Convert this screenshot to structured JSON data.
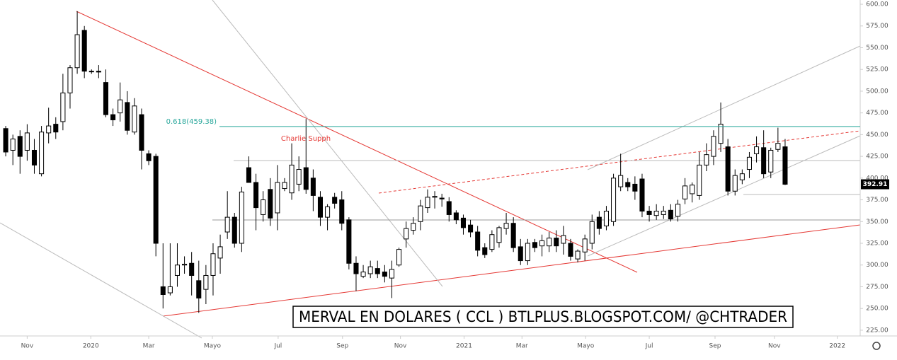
{
  "chart_data": {
    "type": "candlestick",
    "title": "MERVAL EN DOLARES ( CCL ) BTLPLUS.BLOGSPOT.COM/ @CHTRADER",
    "annotation": "Charlie Supph",
    "fib_level": {
      "value": 459.38,
      "label": "0.618(459.38)"
    },
    "last_price": 392.91,
    "open": [
      457,
      432,
      448,
      432,
      432,
      405,
      452,
      462,
      465,
      498,
      527,
      570,
      523,
      523,
      510,
      473,
      475,
      487,
      453,
      473,
      428,
      425,
      275,
      268,
      288,
      300,
      302,
      282,
      272,
      288,
      308,
      338,
      355,
      325,
      412,
      395,
      358,
      387,
      360,
      388,
      383,
      393,
      412,
      400,
      378,
      355,
      378,
      375,
      352,
      302,
      287,
      290,
      296,
      292,
      285,
      300,
      330,
      340,
      350,
      366,
      378,
      377,
      373,
      360,
      354,
      346,
      338,
      320,
      318,
      326,
      342,
      348,
      321,
      305,
      326,
      322,
      322,
      331,
      325,
      325,
      307,
      315,
      325,
      355,
      345,
      350,
      390,
      395,
      393,
      399,
      362,
      357,
      358,
      363,
      356,
      376,
      382,
      380,
      415,
      425,
      440,
      436,
      385,
      398,
      410,
      428,
      435,
      407,
      433,
      436
    ],
    "high": [
      460,
      450,
      455,
      462,
      445,
      460,
      481,
      470,
      520,
      530,
      592,
      575,
      525,
      530,
      525,
      480,
      510,
      500,
      492,
      480,
      432,
      428,
      325,
      325,
      325,
      310,
      315,
      305,
      300,
      325,
      335,
      385,
      360,
      390,
      425,
      405,
      385,
      400,
      415,
      400,
      440,
      425,
      468,
      410,
      385,
      370,
      383,
      385,
      355,
      310,
      300,
      305,
      305,
      300,
      305,
      320,
      350,
      355,
      375,
      387,
      385,
      382,
      378,
      363,
      358,
      352,
      345,
      325,
      340,
      345,
      360,
      355,
      330,
      330,
      330,
      335,
      338,
      340,
      345,
      330,
      318,
      335,
      358,
      362,
      368,
      405,
      428,
      400,
      402,
      405,
      368,
      370,
      368,
      370,
      375,
      400,
      395,
      430,
      440,
      455,
      487,
      445,
      410,
      410,
      430,
      448,
      455,
      435,
      458,
      445
    ],
    "low": [
      425,
      415,
      405,
      420,
      405,
      402,
      440,
      445,
      455,
      480,
      520,
      515,
      520,
      515,
      470,
      460,
      465,
      450,
      450,
      410,
      415,
      310,
      250,
      265,
      275,
      290,
      265,
      245,
      255,
      265,
      290,
      330,
      320,
      315,
      395,
      340,
      350,
      345,
      340,
      385,
      375,
      385,
      382,
      362,
      345,
      340,
      365,
      340,
      295,
      270,
      285,
      285,
      285,
      280,
      262,
      298,
      320,
      335,
      340,
      360,
      365,
      367,
      350,
      347,
      335,
      332,
      310,
      308,
      315,
      320,
      335,
      315,
      300,
      300,
      315,
      310,
      315,
      315,
      312,
      305,
      303,
      305,
      318,
      335,
      340,
      345,
      385,
      385,
      375,
      355,
      350,
      352,
      353,
      350,
      350,
      370,
      372,
      375,
      408,
      415,
      430,
      380,
      380,
      393,
      400,
      418,
      400,
      400,
      430,
      392
    ],
    "close": [
      430,
      445,
      425,
      452,
      415,
      453,
      460,
      453,
      498,
      527,
      565,
      523,
      523,
      522,
      473,
      467,
      490,
      455,
      483,
      432,
      420,
      325,
      266,
      275,
      300,
      301,
      288,
      262,
      288,
      313,
      321,
      355,
      325,
      384,
      395,
      366,
      375,
      354,
      395,
      395,
      415,
      410,
      387,
      380,
      355,
      367,
      371,
      348,
      302,
      290,
      292,
      298,
      290,
      287,
      295,
      318,
      342,
      348,
      368,
      378,
      379,
      376,
      358,
      352,
      343,
      338,
      317,
      312,
      335,
      343,
      348,
      320,
      305,
      325,
      320,
      328,
      331,
      322,
      334,
      310,
      316,
      330,
      350,
      342,
      362,
      400,
      403,
      390,
      385,
      362,
      358,
      362,
      362,
      353,
      370,
      391,
      392,
      415,
      427,
      448,
      462,
      385,
      403,
      405,
      424,
      436,
      405,
      432,
      440,
      392.91
    ],
    "up_color": "#ffffff",
    "down_color": "#000000",
    "xlim": [
      -0.8,
      119.5
    ],
    "xticks": [
      {
        "value": 3,
        "label": "Nov"
      },
      {
        "value": 11.9,
        "label": "2020"
      },
      {
        "value": 20,
        "label": "Mar"
      },
      {
        "value": 28.9,
        "label": "Mayo"
      },
      {
        "value": 38.1,
        "label": "Jul"
      },
      {
        "value": 47.1,
        "label": "Sep"
      },
      {
        "value": 55.2,
        "label": "Nov"
      },
      {
        "value": 64.1,
        "label": "2021"
      },
      {
        "value": 72.2,
        "label": "Mar"
      },
      {
        "value": 81.1,
        "label": "Mayo"
      },
      {
        "value": 90,
        "label": "Jul"
      },
      {
        "value": 99.2,
        "label": "Sep"
      },
      {
        "value": 107.5,
        "label": "Nov"
      },
      {
        "value": 116.3,
        "label": "2022"
      }
    ],
    "ylim": [
      218.4,
      604.9
    ],
    "yticks": [
      {
        "value": 225,
        "label": "225.00"
      },
      {
        "value": 250,
        "label": "250.00"
      },
      {
        "value": 275,
        "label": "275.00"
      },
      {
        "value": 300,
        "label": "300.00"
      },
      {
        "value": 325,
        "label": "325.00"
      },
      {
        "value": 350,
        "label": "350.00"
      },
      {
        "value": 375,
        "label": "375.00"
      },
      {
        "value": 400,
        "label": "400.00"
      },
      {
        "value": 425,
        "label": "425.00"
      },
      {
        "value": 450,
        "label": "450.00"
      },
      {
        "value": 475,
        "label": "475.00"
      },
      {
        "value": 500,
        "label": "500.00"
      },
      {
        "value": 525,
        "label": "525.00"
      },
      {
        "value": 550,
        "label": "550.00"
      },
      {
        "value": 575,
        "label": "575.00"
      },
      {
        "value": 600,
        "label": "600.00"
      }
    ]
  }
}
